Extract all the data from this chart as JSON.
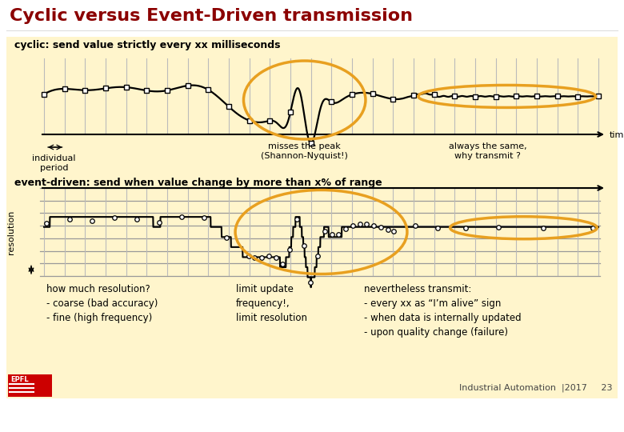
{
  "title": "Cyclic versus Event-Driven transmission",
  "title_color": "#8B0000",
  "bg_color": "#FFF5CC",
  "slide_bg": "#FFFFFF",
  "cyclic_label": "cyclic: send value strictly every xx milliseconds",
  "event_label": "event-driven: send when value change by more than x% of range",
  "bottom_text_left": "how much resolution?\n- coarse (bad accuracy)\n- fine (high frequency)",
  "bottom_text_mid": "limit update\nfrequency!,\nlimit resolution",
  "bottom_text_right": "nevertheless transmit:\n- every xx as “I’m alive” sign\n- when data is internally updated\n- upon quality change (failure)",
  "footer_text": "Industrial Automation  |2017     23",
  "misses_text": "misses the peak\n(Shannon-Nyquist!)",
  "always_text": "always the same,\nwhy transmit ?",
  "time_text": "time",
  "individual_text": "individual\nperiod",
  "resolution_text": "resolution",
  "orange_color": "#E8A020",
  "line_color": "#000000",
  "vline_color": "#BBBBBB",
  "hline_color": "#999999"
}
